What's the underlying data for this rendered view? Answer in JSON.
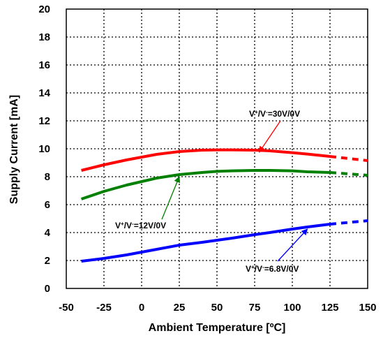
{
  "chart_data": {
    "type": "line",
    "title": "",
    "xlabel": "Ambient Temperature [ºC]",
    "ylabel": "Supply Current [mA]",
    "xlim": [
      -50,
      150
    ],
    "ylim": [
      0,
      20
    ],
    "x_ticks": [
      "-50",
      "-25",
      "0",
      "25",
      "50",
      "75",
      "100",
      "125",
      "150"
    ],
    "y_ticks": [
      "0",
      "2",
      "4",
      "6",
      "8",
      "10",
      "12",
      "14",
      "16",
      "18",
      "20"
    ],
    "grid": true,
    "series": [
      {
        "name": "V+/V-=30V/0V",
        "color": "#ff0000",
        "x": [
          -40,
          -25,
          -10,
          0,
          10,
          25,
          40,
          50,
          60,
          75,
          85,
          100,
          110,
          125
        ],
        "y": [
          8.45,
          8.85,
          9.2,
          9.4,
          9.6,
          9.8,
          9.9,
          9.92,
          9.92,
          9.9,
          9.85,
          9.72,
          9.62,
          9.45
        ],
        "extrapolated": {
          "x": [
            125,
            150
          ],
          "y": [
            9.45,
            9.15
          ]
        }
      },
      {
        "name": "V+/V-=12V/0V",
        "color": "#008000",
        "x": [
          -40,
          -25,
          -10,
          0,
          10,
          25,
          40,
          50,
          60,
          75,
          85,
          100,
          110,
          125
        ],
        "y": [
          6.4,
          6.95,
          7.4,
          7.65,
          7.9,
          8.15,
          8.3,
          8.38,
          8.42,
          8.45,
          8.45,
          8.42,
          8.35,
          8.3
        ],
        "extrapolated": {
          "x": [
            125,
            150
          ],
          "y": [
            8.3,
            8.1
          ]
        }
      },
      {
        "name": "V+/V-=6.8V/0V",
        "color": "#0000ff",
        "x": [
          -40,
          -25,
          -10,
          0,
          10,
          25,
          40,
          50,
          60,
          75,
          85,
          100,
          110,
          125
        ],
        "y": [
          1.95,
          2.15,
          2.4,
          2.6,
          2.8,
          3.1,
          3.3,
          3.45,
          3.6,
          3.85,
          4.0,
          4.25,
          4.4,
          4.6
        ],
        "extrapolated": {
          "x": [
            125,
            150
          ],
          "y": [
            4.6,
            4.85
          ]
        }
      }
    ],
    "annotations": [
      {
        "base": "V",
        "sup1": "+",
        "mid": "/V",
        "sup2": "-",
        "tail": "=30V/0V",
        "color": "#ff0000",
        "target": [
          78,
          9.9
        ]
      },
      {
        "base": "V",
        "sup1": "+",
        "mid": "/V",
        "sup2": "-",
        "tail": "=12V/0V",
        "color": "#008000",
        "target": [
          25,
          8.15
        ]
      },
      {
        "base": "V",
        "sup1": "+",
        "mid": "/V",
        "sup2": "-",
        "tail": "=6.8V/0V",
        "color": "#0000ff",
        "target": [
          110,
          4.4
        ]
      }
    ]
  }
}
